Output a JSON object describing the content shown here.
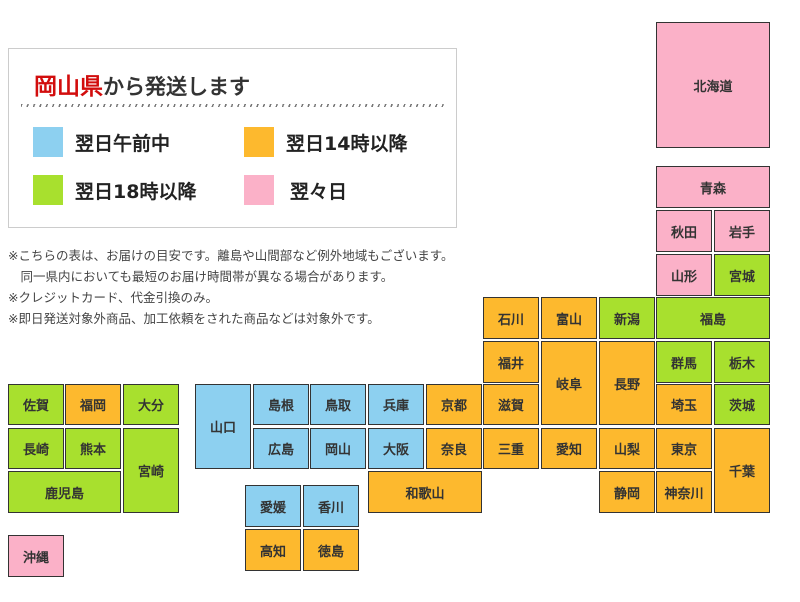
{
  "header": {
    "title_highlight": "岡山県",
    "title_rest": "から発送します"
  },
  "legend": [
    {
      "label": "翌日午前中",
      "color": "#8dd0f0"
    },
    {
      "label": "翌日14時以降",
      "color": "#fdb92e"
    },
    {
      "label": "翌日18時以降",
      "color": "#a8e02e"
    },
    {
      "label": "翌々日",
      "color": "#fbb1c8"
    }
  ],
  "notes": [
    "※こちらの表は、お届けの目安です。離島や山間部など例外地域もございます。",
    "　同一県内においても最短のお届け時間帯が異なる場合があります。",
    "※クレジットカード、代金引換のみ。",
    "※即日発送対象外商品、加工依頼をされた商品などは対象外です。"
  ],
  "prefectures": [
    {
      "id": "hokkaido",
      "name": "北海道",
      "tier": 3
    },
    {
      "id": "aomori",
      "name": "青森",
      "tier": 3
    },
    {
      "id": "akita",
      "name": "秋田",
      "tier": 3
    },
    {
      "id": "iwate",
      "name": "岩手",
      "tier": 3
    },
    {
      "id": "yamagata",
      "name": "山形",
      "tier": 3
    },
    {
      "id": "miyagi",
      "name": "宮城",
      "tier": 2
    },
    {
      "id": "ishikawa",
      "name": "石川",
      "tier": 1
    },
    {
      "id": "toyama",
      "name": "富山",
      "tier": 1
    },
    {
      "id": "niigata",
      "name": "新潟",
      "tier": 2
    },
    {
      "id": "fukushima",
      "name": "福島",
      "tier": 2
    },
    {
      "id": "fukui",
      "name": "福井",
      "tier": 1
    },
    {
      "id": "gifu",
      "name": "岐阜",
      "tier": 1
    },
    {
      "id": "nagano",
      "name": "長野",
      "tier": 1
    },
    {
      "id": "gunma",
      "name": "群馬",
      "tier": 2
    },
    {
      "id": "tochigi",
      "name": "栃木",
      "tier": 2
    },
    {
      "id": "shiga",
      "name": "滋賀",
      "tier": 1
    },
    {
      "id": "saitama",
      "name": "埼玉",
      "tier": 1
    },
    {
      "id": "ibaraki",
      "name": "茨城",
      "tier": 2
    },
    {
      "id": "kyoto",
      "name": "京都",
      "tier": 1
    },
    {
      "id": "nara",
      "name": "奈良",
      "tier": 1
    },
    {
      "id": "mie",
      "name": "三重",
      "tier": 1
    },
    {
      "id": "aichi",
      "name": "愛知",
      "tier": 1
    },
    {
      "id": "yamanashi",
      "name": "山梨",
      "tier": 1
    },
    {
      "id": "tokyo",
      "name": "東京",
      "tier": 1
    },
    {
      "id": "chiba",
      "name": "千葉",
      "tier": 1
    },
    {
      "id": "shizuoka",
      "name": "静岡",
      "tier": 1
    },
    {
      "id": "kanagawa",
      "name": "神奈川",
      "tier": 1
    },
    {
      "id": "wakayama",
      "name": "和歌山",
      "tier": 1
    },
    {
      "id": "yamaguchi",
      "name": "山口",
      "tier": 0
    },
    {
      "id": "shimane",
      "name": "島根",
      "tier": 0
    },
    {
      "id": "tottori",
      "name": "鳥取",
      "tier": 0
    },
    {
      "id": "hyogo",
      "name": "兵庫",
      "tier": 0
    },
    {
      "id": "hiroshima",
      "name": "広島",
      "tier": 0
    },
    {
      "id": "okayama",
      "name": "岡山",
      "tier": 0
    },
    {
      "id": "osaka",
      "name": "大阪",
      "tier": 0
    },
    {
      "id": "ehime",
      "name": "愛媛",
      "tier": 0
    },
    {
      "id": "kagawa",
      "name": "香川",
      "tier": 0
    },
    {
      "id": "kochi",
      "name": "高知",
      "tier": 1
    },
    {
      "id": "tokushima",
      "name": "徳島",
      "tier": 1
    },
    {
      "id": "saga",
      "name": "佐賀",
      "tier": 2
    },
    {
      "id": "fukuoka",
      "name": "福岡",
      "tier": 1
    },
    {
      "id": "oita",
      "name": "大分",
      "tier": 2
    },
    {
      "id": "nagasaki",
      "name": "長崎",
      "tier": 2
    },
    {
      "id": "kumamoto",
      "name": "熊本",
      "tier": 2
    },
    {
      "id": "miyazaki",
      "name": "宮崎",
      "tier": 2
    },
    {
      "id": "kagoshima",
      "name": "鹿児島",
      "tier": 2
    },
    {
      "id": "okinawa",
      "name": "沖縄",
      "tier": 3
    }
  ]
}
